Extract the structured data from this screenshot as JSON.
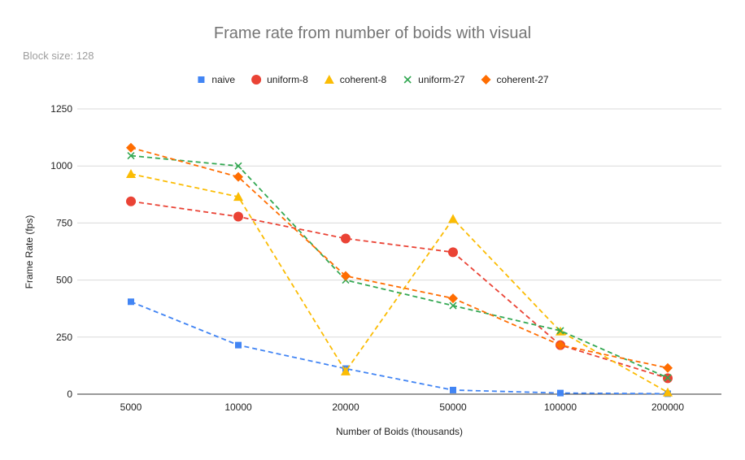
{
  "chart_data": {
    "type": "line",
    "title": "Frame rate from number of boids with visual",
    "subtitle": "Block size: 128",
    "xlabel": "Number of Boids (thousands)",
    "ylabel": "Frame Rate (fps)",
    "categories": [
      "5000",
      "10000",
      "20000",
      "50000",
      "100000",
      "200000"
    ],
    "ylim": [
      0,
      1250
    ],
    "yticks": [
      0,
      250,
      500,
      750,
      1000,
      1250
    ],
    "grid": true,
    "legend_position": "top",
    "line_style": "dashed",
    "series": [
      {
        "name": "naive",
        "color": "#4285f4",
        "marker": "square",
        "values": [
          405,
          215,
          112,
          18,
          5,
          2
        ]
      },
      {
        "name": "uniform-8",
        "color": "#ea4335",
        "marker": "circle",
        "values": [
          845,
          778,
          682,
          622,
          215,
          70
        ]
      },
      {
        "name": "coherent-8",
        "color": "#fbbc04",
        "marker": "triangle",
        "values": [
          965,
          865,
          100,
          768,
          275,
          8
        ]
      },
      {
        "name": "uniform-27",
        "color": "#34a853",
        "marker": "cross",
        "values": [
          1045,
          1000,
          500,
          388,
          278,
          72
        ]
      },
      {
        "name": "coherent-27",
        "color": "#ff6d01",
        "marker": "diamond",
        "values": [
          1080,
          952,
          518,
          420,
          215,
          115
        ]
      }
    ]
  }
}
